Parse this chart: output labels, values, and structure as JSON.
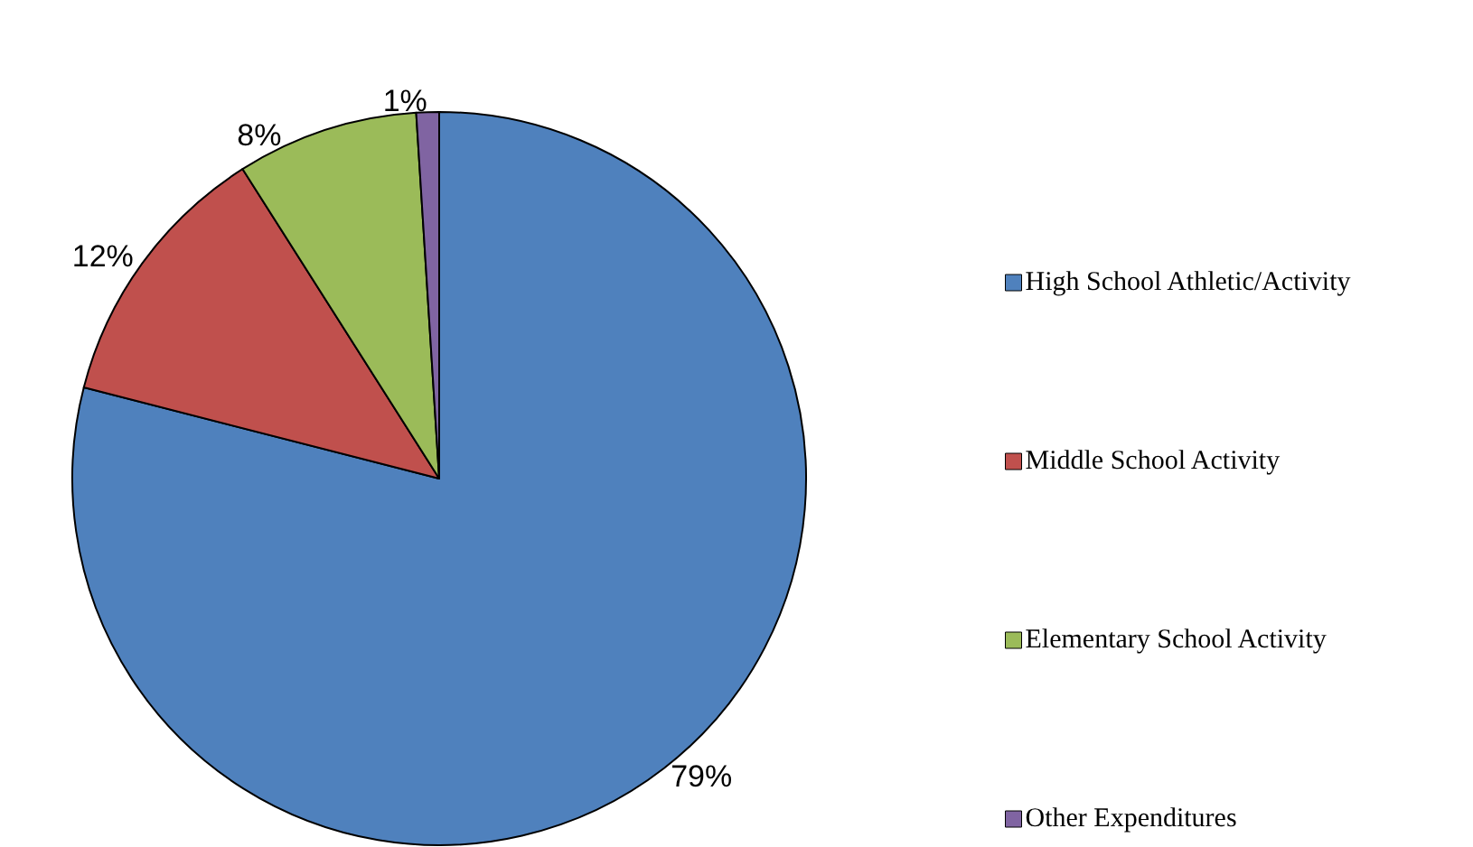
{
  "chart_data": {
    "type": "pie",
    "categories": [
      "High School Athletic/Activity",
      "Middle School Activity",
      "Elementary School Activity",
      "Other Expenditures"
    ],
    "values": [
      79,
      12,
      8,
      1
    ],
    "colors": [
      "#4f81bd",
      "#c0504d",
      "#9bbb59",
      "#8064a2"
    ],
    "value_labels": [
      "79%",
      "12%",
      "8%",
      "1%"
    ],
    "legend": "right"
  }
}
